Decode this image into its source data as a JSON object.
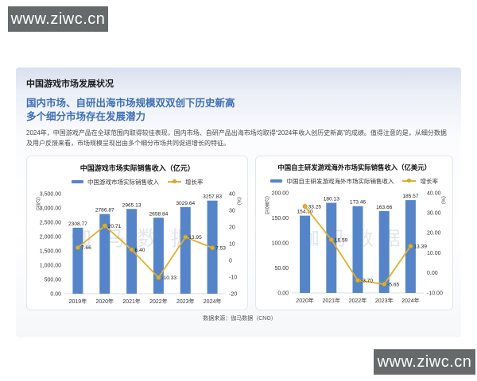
{
  "watermark": {
    "text": "www.ziwc.cn"
  },
  "slide": {
    "heading": "中国游戏市场发展状况",
    "subtitle_line1": "国内市场、自研出海市场规模双双创下历史新高",
    "subtitle_line2": "多个细分市场存在发展潜力",
    "paragraph": "2024年，中国游戏产品在全球范围内取得较佳表现，国内市场、自研产品出海市场均取得“2024年收入创历史新高”的成绩。值得注意的是，从细分数据及用户反馈来看，市场规模呈现出由多个细分市场共同促进增长的特征。",
    "footer": "数据来源：伽马数据（CNG）",
    "chart_watermark": "伽马数据"
  },
  "colors": {
    "bar": "#5585c8",
    "line": "#e0af2c",
    "line_stroke": "#c79c1f",
    "subtitle_blue": "#3d6fb6"
  },
  "chart_data": [
    {
      "type": "bar",
      "title": "中国游戏市场实际销售收入（亿元）",
      "categories": [
        "2019年",
        "2020年",
        "2021年",
        "2022年",
        "2023年",
        "2024年"
      ],
      "series": [
        {
          "name": "中国游戏市场实际销售收入",
          "type": "bar",
          "axis": "left",
          "values": [
            2308.77,
            2786.87,
            2965.13,
            2658.84,
            3029.64,
            3257.83
          ],
          "labels": [
            "2308.77",
            "2786.87",
            "2965.13",
            "2658.84",
            "3029.64",
            "3257.83"
          ]
        },
        {
          "name": "增长率",
          "type": "line",
          "axis": "right",
          "values": [
            7.66,
            20.71,
            6.4,
            -10.33,
            13.95,
            7.53
          ],
          "labels": [
            "7.66",
            "20.71",
            "6.40",
            "-10.33",
            "13.95",
            "7.53"
          ]
        }
      ],
      "left_axis": {
        "unit": "（亿元）",
        "min": 0,
        "max": 3500,
        "tick_labels": [
          "3,500.00",
          "3,000.00",
          "2,500.00",
          "2,000.00",
          "1,500.00",
          "1,000.00",
          "500.00",
          "0.00"
        ]
      },
      "right_axis": {
        "unit": "（%）",
        "min": -20,
        "max": 40,
        "tick_labels": [
          "40",
          "30",
          "20",
          "10",
          "0",
          "-10",
          "-20"
        ]
      },
      "legend_position": "top",
      "grid": false
    },
    {
      "type": "bar",
      "title": "中国自主研发游戏海外市场实际销售收入（亿美元）",
      "categories": [
        "2020年",
        "2021年",
        "2022年",
        "2023年",
        "2024年"
      ],
      "series": [
        {
          "name": "中国自主研发游戏海外市场实际销售收入",
          "type": "bar",
          "axis": "left",
          "values": [
            154.5,
            180.13,
            173.46,
            163.66,
            185.57
          ],
          "labels": [
            "154.50",
            "180.13",
            "173.46",
            "163.66",
            "185.57"
          ]
        },
        {
          "name": "增长率",
          "type": "line",
          "axis": "right",
          "values": [
            33.25,
            16.59,
            -3.7,
            -5.65,
            13.39
          ],
          "labels": [
            "33.25",
            "16.59",
            "-3.70",
            "-5.65",
            "13.39"
          ]
        }
      ],
      "left_axis": {
        "unit": "（亿美元）",
        "min": 0,
        "max": 200,
        "tick_labels": [
          "200.00",
          "150.00",
          "100.00",
          "50.00",
          "0.00"
        ]
      },
      "right_axis": {
        "unit": "（%）",
        "min": -10,
        "max": 40,
        "tick_labels": [
          "40.00",
          "30.00",
          "20.00",
          "10.00",
          "0.00",
          "-10.00"
        ]
      },
      "legend_position": "top",
      "grid": false
    }
  ]
}
